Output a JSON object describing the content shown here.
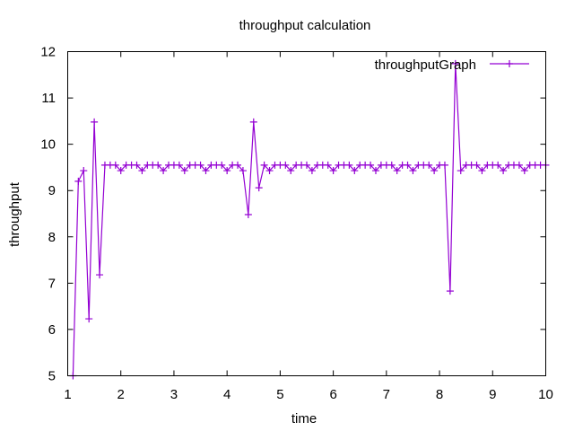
{
  "chart_data": {
    "type": "line",
    "title": "throughput calculation",
    "xlabel": "time",
    "ylabel": "throughput",
    "xlim": [
      1,
      10
    ],
    "ylim": [
      5,
      12
    ],
    "xticks": [
      "1",
      "2",
      "3",
      "4",
      "5",
      "6",
      "7",
      "8",
      "9",
      "10"
    ],
    "yticks": [
      "5",
      "6",
      "7",
      "8",
      "9",
      "10",
      "11",
      "12"
    ],
    "grid": false,
    "legend_position": "top-right",
    "series": [
      {
        "name": "throughputGraph",
        "color": "#9400d3",
        "marker": "plus",
        "x": [
          1.1,
          1.2,
          1.3,
          1.4,
          1.5,
          1.6,
          1.7,
          1.8,
          1.9,
          2.0,
          2.1,
          2.2,
          2.3,
          2.4,
          2.5,
          2.6,
          2.7,
          2.8,
          2.9,
          3.0,
          3.1,
          3.2,
          3.3,
          3.4,
          3.5,
          3.6,
          3.7,
          3.8,
          3.9,
          4.0,
          4.1,
          4.2,
          4.3,
          4.4,
          4.5,
          4.6,
          4.7,
          4.8,
          4.9,
          5.0,
          5.1,
          5.2,
          5.3,
          5.4,
          5.5,
          5.6,
          5.7,
          5.8,
          5.9,
          6.0,
          6.1,
          6.2,
          6.3,
          6.4,
          6.5,
          6.6,
          6.7,
          6.8,
          6.9,
          7.0,
          7.1,
          7.2,
          7.3,
          7.4,
          7.5,
          7.6,
          7.7,
          7.8,
          7.9,
          8.0,
          8.1,
          8.2,
          8.3,
          8.4,
          8.5,
          8.6,
          8.7,
          8.8,
          8.9,
          9.0,
          9.1,
          9.2,
          9.3,
          9.4,
          9.5,
          9.6,
          9.7,
          9.8,
          9.9,
          10.0
        ],
        "y": [
          5.0,
          9.2,
          9.43,
          6.23,
          10.48,
          7.18,
          9.55,
          9.55,
          9.55,
          9.43,
          9.55,
          9.55,
          9.55,
          9.43,
          9.55,
          9.55,
          9.55,
          9.43,
          9.55,
          9.55,
          9.55,
          9.43,
          9.55,
          9.55,
          9.55,
          9.43,
          9.55,
          9.55,
          9.55,
          9.43,
          9.55,
          9.55,
          9.43,
          8.48,
          10.48,
          9.06,
          9.55,
          9.43,
          9.55,
          9.55,
          9.55,
          9.43,
          9.55,
          9.55,
          9.55,
          9.43,
          9.55,
          9.55,
          9.55,
          9.43,
          9.55,
          9.55,
          9.55,
          9.43,
          9.55,
          9.55,
          9.55,
          9.43,
          9.55,
          9.55,
          9.55,
          9.43,
          9.55,
          9.55,
          9.43,
          9.55,
          9.55,
          9.55,
          9.43,
          9.55,
          9.55,
          6.83,
          11.74,
          9.43,
          9.55,
          9.55,
          9.55,
          9.43,
          9.55,
          9.55,
          9.55,
          9.43,
          9.55,
          9.55,
          9.55,
          9.43,
          9.55,
          9.55,
          9.55,
          9.55
        ]
      }
    ]
  }
}
